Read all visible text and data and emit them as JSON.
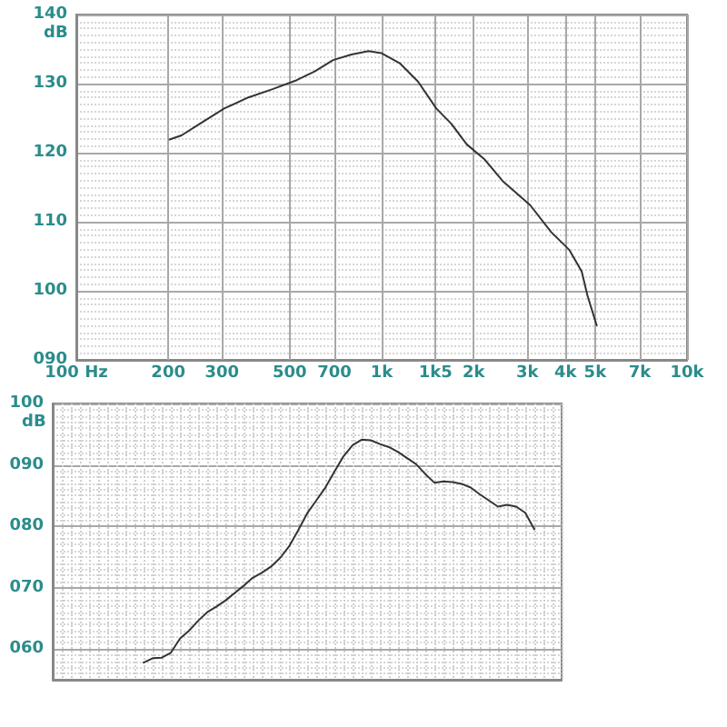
{
  "chart_data": [
    {
      "type": "line",
      "ylabel": "dB",
      "x": [
        202,
        221,
        254,
        305,
        366,
        439,
        527,
        605,
        693,
        796,
        905,
        1000,
        1150,
        1315,
        1510,
        1690,
        1900,
        2175,
        2490,
        2610,
        3065,
        3590,
        4120,
        4520,
        4720,
        5060
      ],
      "values": [
        121.9,
        122.5,
        124.2,
        126.4,
        128.0,
        129.2,
        130.5,
        131.8,
        133.4,
        134.2,
        134.7,
        134.4,
        132.9,
        130.3,
        126.4,
        124.2,
        121.2,
        119.0,
        115.9,
        115.1,
        112.4,
        108.5,
        105.9,
        102.8,
        99.3,
        95.0
      ],
      "color": "#333333",
      "xlim": [
        100,
        10000
      ],
      "xticks": [
        {
          "value": 100,
          "label": "100 Hz"
        },
        200,
        300,
        500,
        700,
        {
          "value": 1000,
          "label": "1k"
        },
        {
          "value": 1500,
          "label": "1k5"
        },
        {
          "value": 2000,
          "label": "2k"
        },
        {
          "value": 3000,
          "label": "3k"
        },
        {
          "value": 4000,
          "label": "4k"
        },
        {
          "value": 5000,
          "label": "5k"
        },
        {
          "value": 7000,
          "label": "7k"
        },
        {
          "value": 10000,
          "label": "10k"
        }
      ],
      "ylim": [
        90,
        140
      ],
      "yticks": [
        {
          "value": 90,
          "label": "090"
        },
        100,
        110,
        120,
        130,
        140
      ],
      "log": "x",
      "grid": true,
      "marker": "none"
    },
    {
      "type": "line",
      "ylabel": "dB",
      "categories": [
        null,
        null,
        null,
        null,
        null,
        null,
        null,
        null,
        null,
        null,
        null,
        null,
        null,
        null,
        null,
        null,
        null,
        null,
        null,
        null,
        null,
        null,
        null,
        null,
        null,
        null,
        null,
        null,
        null,
        null,
        null,
        null,
        null,
        null,
        null,
        null,
        null,
        null,
        null,
        null,
        null,
        null,
        null,
        null,
        null,
        null,
        null,
        null,
        null,
        null,
        null,
        null,
        null,
        null,
        null,
        null,
        null
      ],
      "values": [
        null,
        null,
        null,
        null,
        null,
        null,
        null,
        null,
        null,
        null,
        57.8,
        58.5,
        58.6,
        59.4,
        61.7,
        63.0,
        64.6,
        66.0,
        66.9,
        67.9,
        69.1,
        70.3,
        71.6,
        72.4,
        73.4,
        74.8,
        76.7,
        79.3,
        82.1,
        84.2,
        86.3,
        88.9,
        91.4,
        93.2,
        94.1,
        94.0,
        93.4,
        92.9,
        92.1,
        91.1,
        90.1,
        88.5,
        87.1,
        87.3,
        87.2,
        86.9,
        86.3,
        85.2,
        84.2,
        83.2,
        83.5,
        83.2,
        82.2,
        79.5,
        null,
        null,
        null
      ],
      "color": "#333333",
      "ylim": [
        55,
        100
      ],
      "yticks": [
        {
          "value": 60,
          "label": "060"
        },
        {
          "value": 70,
          "label": "070"
        },
        {
          "value": 80,
          "label": "080"
        },
        {
          "value": 90,
          "label": "090"
        },
        100
      ],
      "tick_labels": "y",
      "grid": true,
      "marker": "none"
    }
  ]
}
